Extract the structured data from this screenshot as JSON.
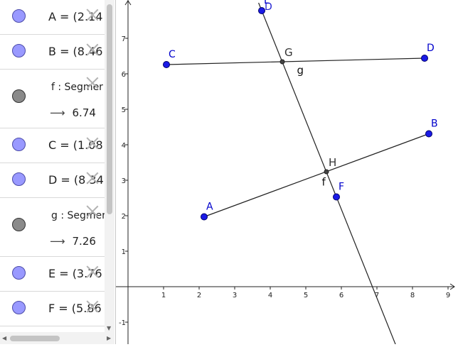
{
  "algebra": {
    "rows": [
      {
        "kind": "point",
        "expr": "A = (2.14"
      },
      {
        "kind": "point",
        "expr": "B = (8.46"
      },
      {
        "kind": "segment",
        "expr": "f : Segmer",
        "value": "6.74"
      },
      {
        "kind": "point",
        "expr": "C = (1.08"
      },
      {
        "kind": "point",
        "expr": "D = (8.34"
      },
      {
        "kind": "segment",
        "expr": "g : Segmer",
        "value": "7.26"
      },
      {
        "kind": "point",
        "expr": "E = (3.76"
      },
      {
        "kind": "point",
        "expr": "F = (5.86"
      }
    ],
    "arrow_glyph": "⟶"
  },
  "colors": {
    "point": "#0000cc",
    "point_fill": "#1a1ae6",
    "label": "#0000cc",
    "line": "#222222",
    "axis": "#222222"
  },
  "graphics": {
    "x_ticks": [
      "1",
      "2",
      "3",
      "4",
      "5",
      "6",
      "7",
      "8",
      "9"
    ],
    "y_ticks": [
      "-1",
      "1",
      "2",
      "3",
      "4",
      "5",
      "6",
      "7"
    ],
    "points": [
      {
        "name": "A",
        "x": 2.14,
        "y": 1.97
      },
      {
        "name": "B",
        "x": 8.46,
        "y": 4.31
      },
      {
        "name": "C",
        "x": 1.08,
        "y": 6.26
      },
      {
        "name": "D",
        "x": 8.34,
        "y": 6.44
      },
      {
        "name": "E",
        "x": 3.76,
        "y": 7.78
      },
      {
        "name": "F",
        "x": 5.86,
        "y": 2.53
      }
    ],
    "intersections": [
      {
        "name": "G",
        "x": 4.34,
        "y": 6.34
      },
      {
        "name": "H",
        "x": 5.58,
        "y": 3.24
      }
    ],
    "segment_labels": [
      {
        "name": "f",
        "x": 5.45,
        "y": 2.95
      },
      {
        "name": "g",
        "x": 4.75,
        "y": 6.1
      }
    ],
    "ghost_label": "D"
  }
}
